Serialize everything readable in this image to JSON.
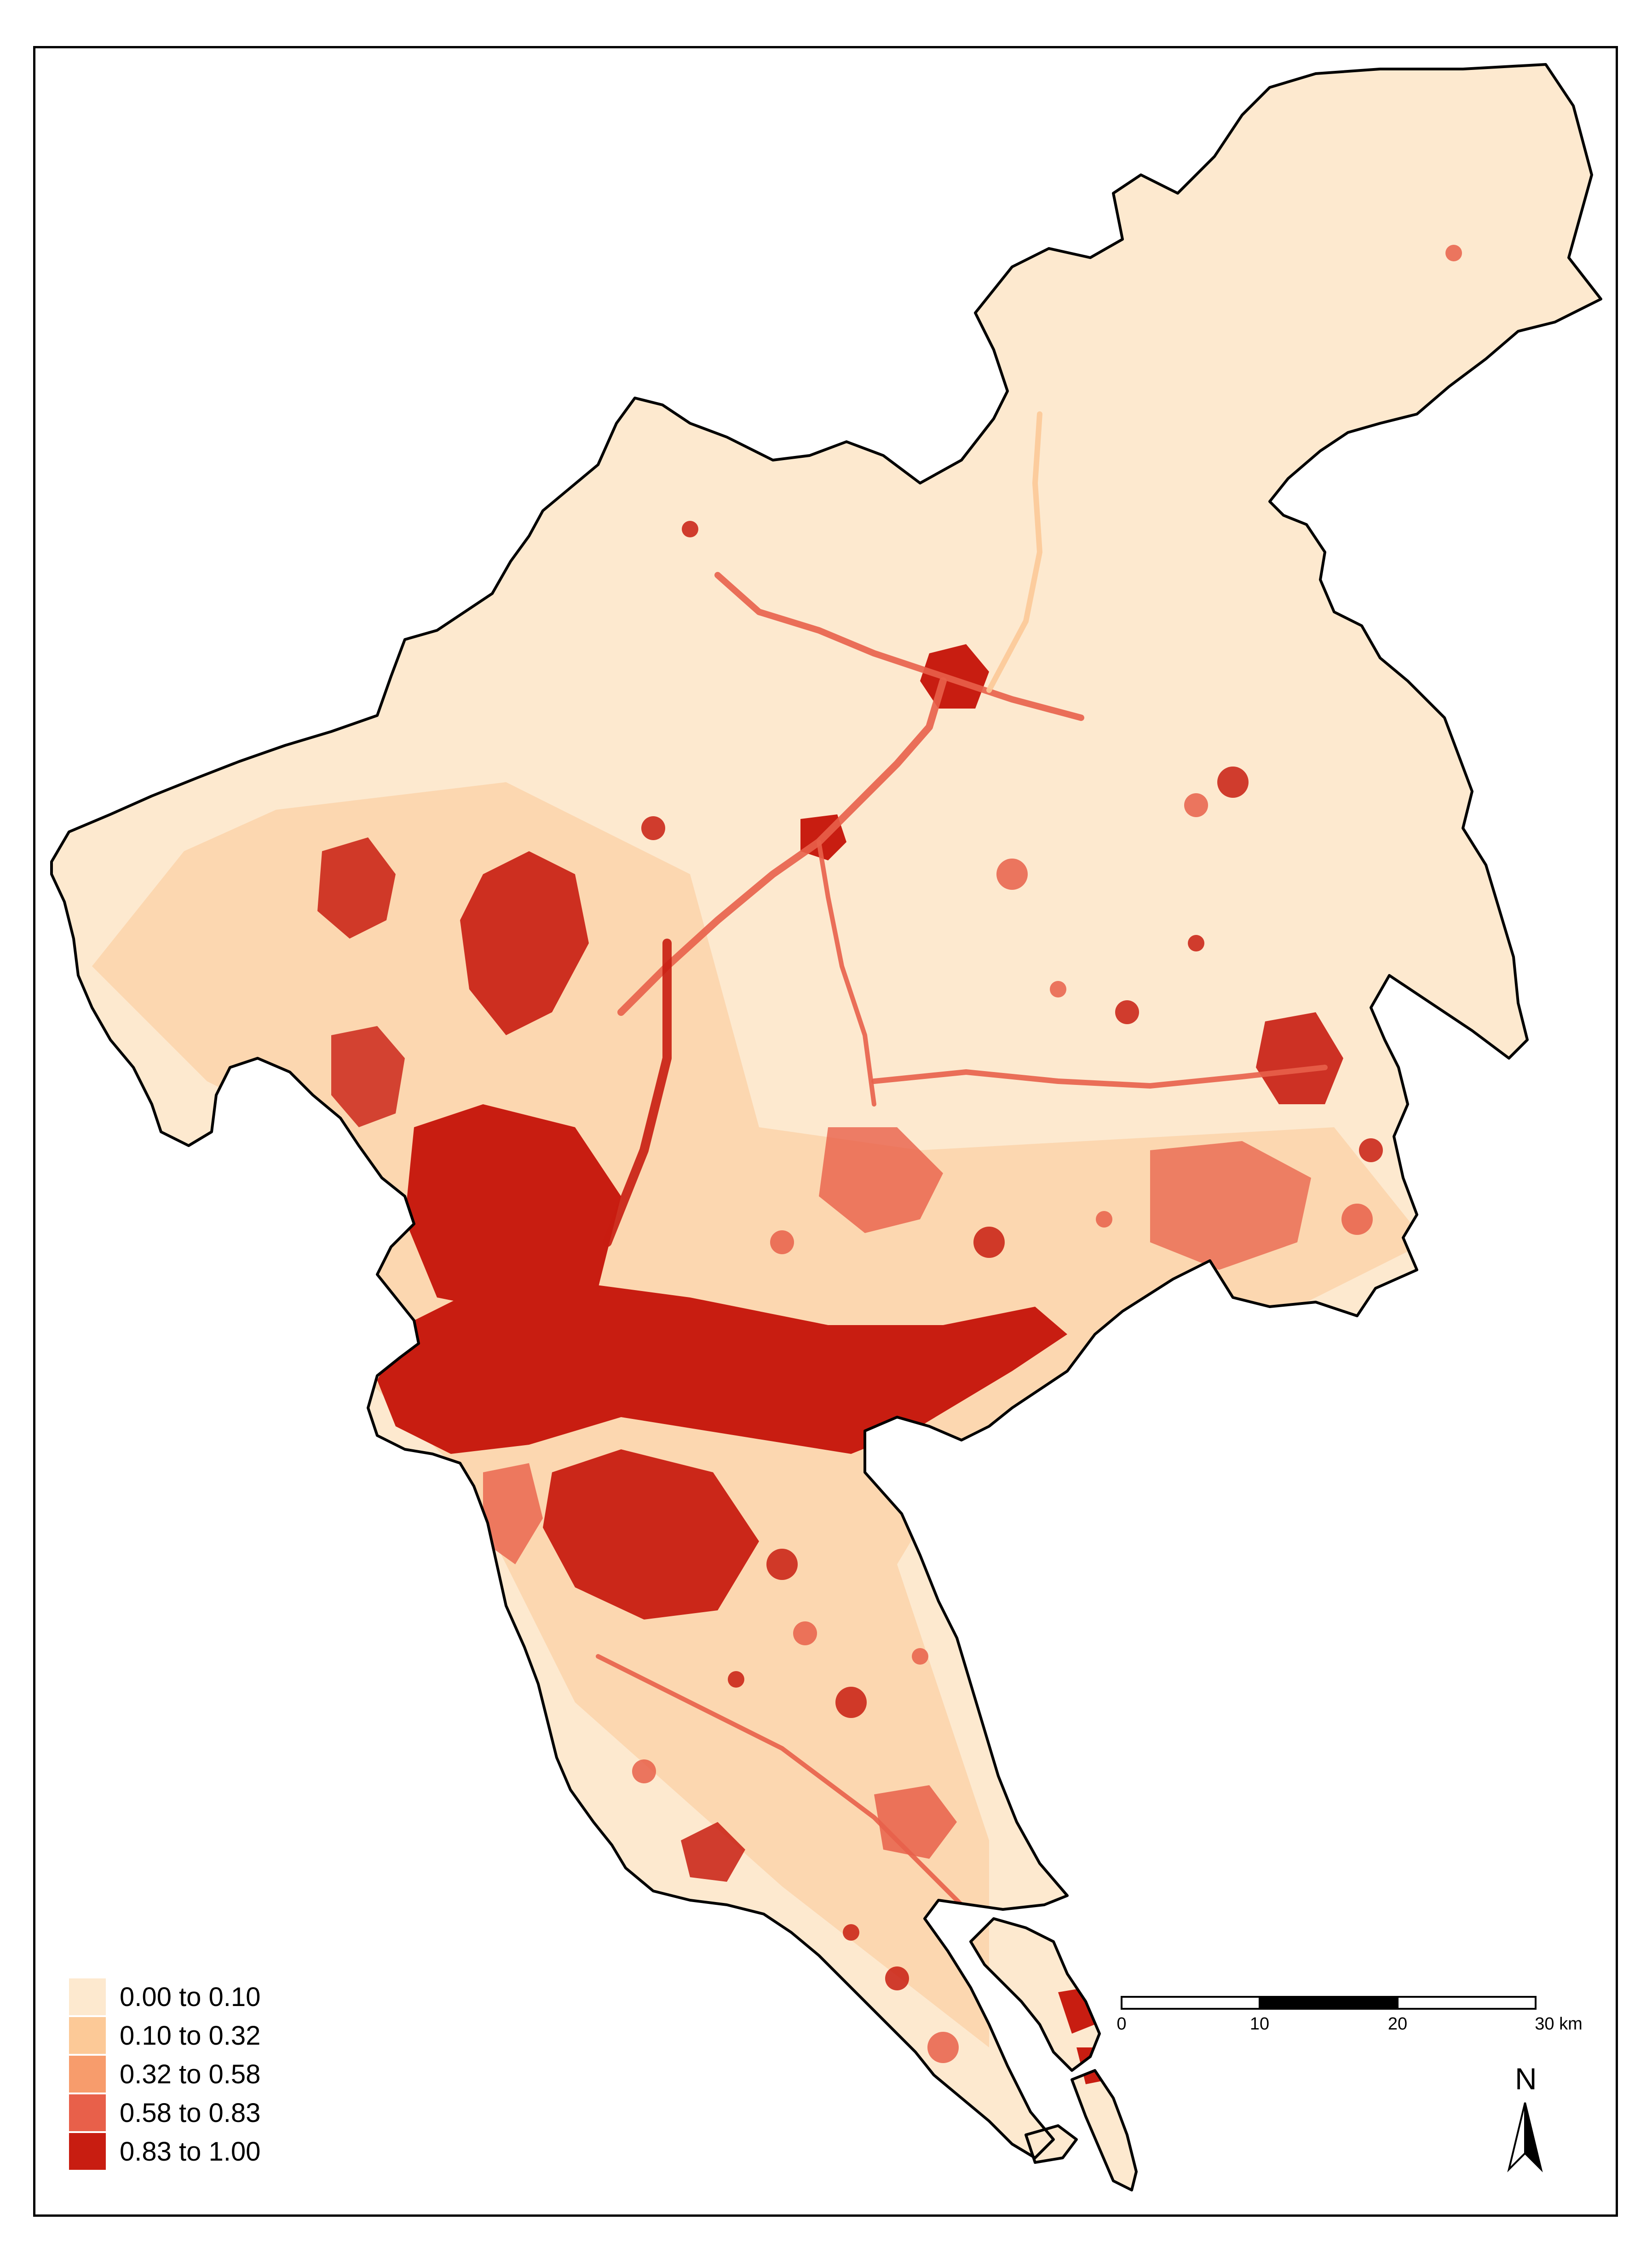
{
  "legend": {
    "items": [
      {
        "label": "0.00 to 0.10",
        "color": "#fde9cf"
      },
      {
        "label": "0.10 to 0.32",
        "color": "#fcc997"
      },
      {
        "label": "0.32 to 0.58",
        "color": "#f79c6c"
      },
      {
        "label": "0.58 to 0.83",
        "color": "#e8604a"
      },
      {
        "label": "0.83 to 1.00",
        "color": "#c81d11"
      }
    ]
  },
  "scale_bar": {
    "ticks": [
      "0",
      "10",
      "20",
      "30 km"
    ],
    "colors": [
      "#ffffff",
      "#000000",
      "#ffffff"
    ]
  },
  "north_arrow": {
    "label": "N",
    "icon": "north-arrow-icon"
  },
  "colors": {
    "boundary": "#000000",
    "base": "#fde9cf",
    "dense": "#c81d11",
    "mid": "#e8604a"
  }
}
